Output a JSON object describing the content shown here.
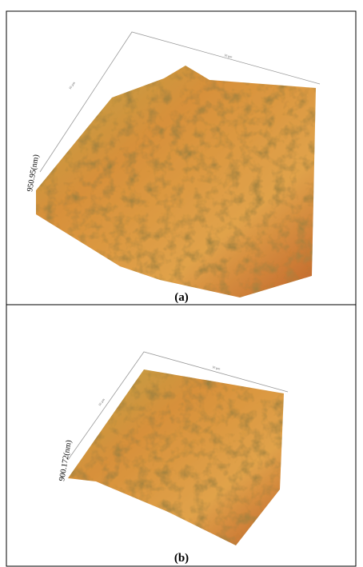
{
  "panels": [
    {
      "label": "(a)",
      "z_label": "950.95(nm)",
      "x_label": "10 µm",
      "y_label": "10 µm"
    },
    {
      "label": "(b)",
      "z_label": "900.172(nm)",
      "x_label": "10 µm",
      "y_label": "10 µm"
    }
  ]
}
